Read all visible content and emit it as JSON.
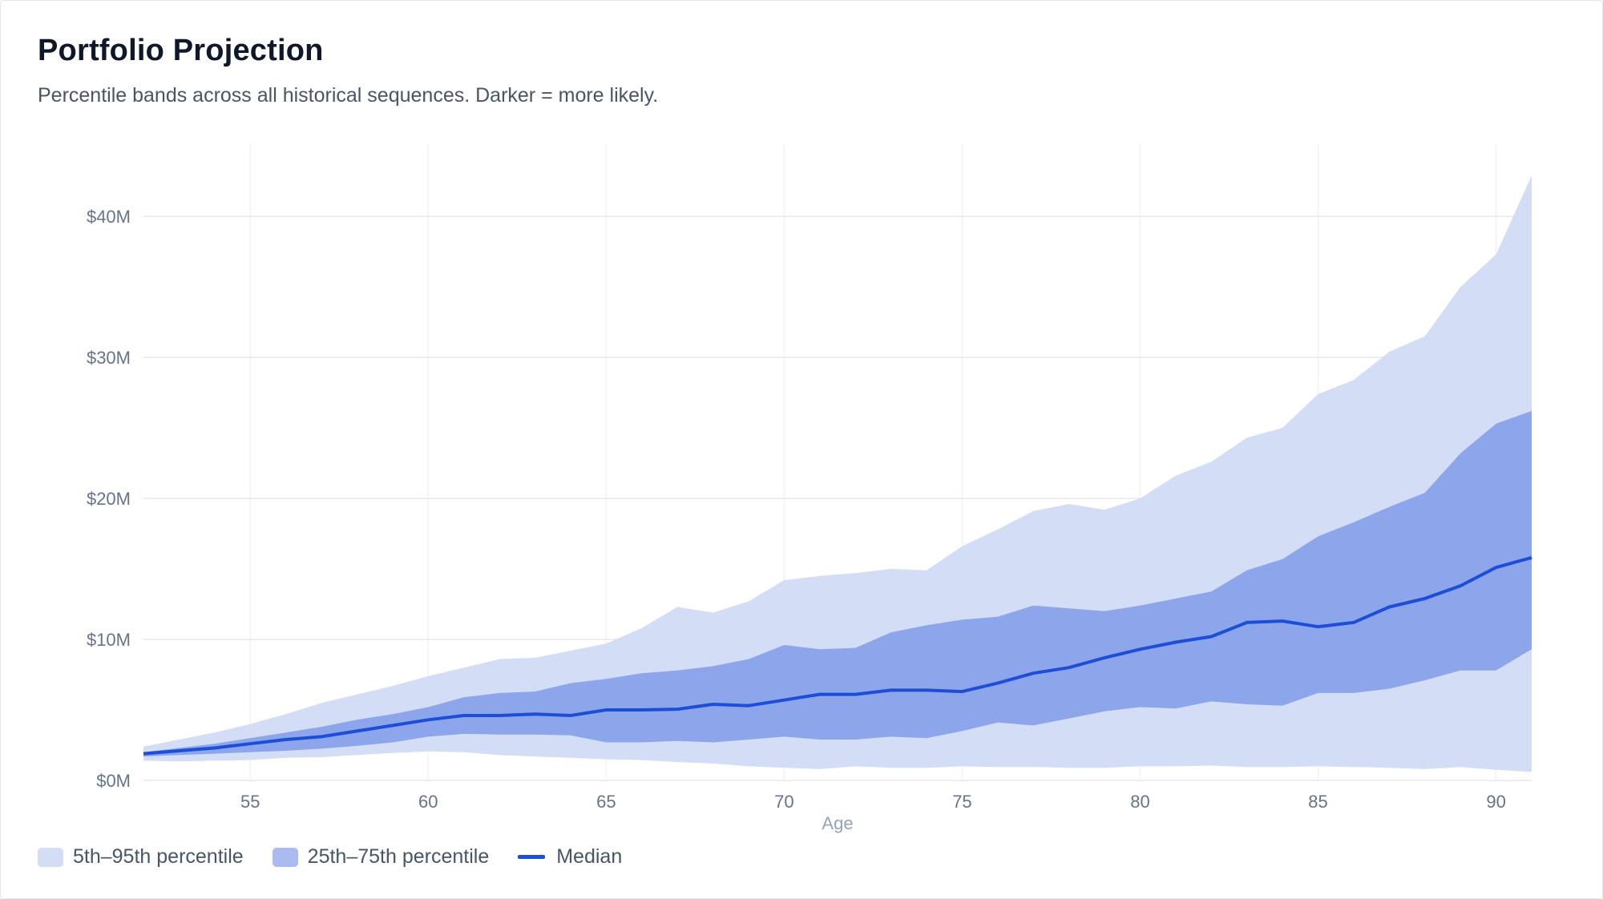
{
  "header": {
    "title": "Portfolio Projection",
    "subtitle": "Percentile bands across all historical sequences. Darker = more likely."
  },
  "legend": {
    "items": [
      {
        "label": "5th–95th percentile",
        "color": "#d3ddf6"
      },
      {
        "label": "25th–75th percentile",
        "color": "#a9bbf0"
      },
      {
        "label": "Median",
        "color": "#1d4ed8"
      }
    ]
  },
  "colors": {
    "band_outer": "#d3ddf6",
    "band_inner": "#8da5ea",
    "median": "#1d4ed8",
    "grid": "#e5e7eb",
    "tick_text": "#64748b"
  },
  "chart_data": {
    "type": "area",
    "xlabel": "Age",
    "ylabel": "",
    "xlim": [
      52,
      91
    ],
    "ylim": [
      0,
      45
    ],
    "x_ticks": [
      55,
      60,
      65,
      70,
      75,
      80,
      85,
      90
    ],
    "y_ticks": [
      0,
      10,
      20,
      30,
      40
    ],
    "y_tick_labels": [
      "$0M",
      "$10M",
      "$20M",
      "$30M",
      "$40M"
    ],
    "grid": true,
    "legend_position": "bottom-left",
    "x": [
      52,
      53,
      54,
      55,
      56,
      57,
      58,
      59,
      60,
      61,
      62,
      63,
      64,
      65,
      66,
      67,
      68,
      69,
      70,
      71,
      72,
      73,
      74,
      75,
      76,
      77,
      78,
      79,
      80,
      81,
      82,
      83,
      84,
      85,
      86,
      87,
      88,
      89,
      90,
      91
    ],
    "series": [
      {
        "name": "p5",
        "values": [
          1.4,
          1.35,
          1.4,
          1.45,
          1.6,
          1.65,
          1.8,
          1.95,
          2.05,
          2.0,
          1.8,
          1.7,
          1.6,
          1.5,
          1.45,
          1.3,
          1.2,
          1.0,
          0.9,
          0.8,
          1.0,
          0.9,
          0.9,
          1.0,
          0.95,
          0.95,
          0.9,
          0.9,
          1.0,
          1.0,
          1.05,
          0.95,
          0.95,
          1.0,
          0.95,
          0.9,
          0.8,
          0.95,
          0.75,
          0.6
        ]
      },
      {
        "name": "p25",
        "values": [
          1.7,
          1.8,
          1.9,
          2.0,
          2.1,
          2.25,
          2.45,
          2.7,
          3.1,
          3.3,
          3.25,
          3.25,
          3.2,
          2.7,
          2.7,
          2.8,
          2.7,
          2.9,
          3.1,
          2.9,
          2.9,
          3.1,
          3.0,
          3.5,
          4.1,
          3.9,
          4.4,
          4.9,
          5.2,
          5.1,
          5.6,
          5.4,
          5.3,
          6.2,
          6.2,
          6.5,
          7.1,
          7.8,
          7.8,
          9.3
        ]
      },
      {
        "name": "Median",
        "values": [
          1.9,
          2.1,
          2.3,
          2.6,
          2.9,
          3.1,
          3.5,
          3.9,
          4.3,
          4.6,
          4.6,
          4.7,
          4.6,
          5.0,
          5.0,
          5.05,
          5.4,
          5.3,
          5.7,
          6.1,
          6.1,
          6.4,
          6.4,
          6.3,
          6.9,
          7.6,
          8.0,
          8.7,
          9.3,
          9.8,
          10.2,
          11.2,
          11.3,
          10.9,
          11.2,
          12.3,
          12.9,
          13.8,
          15.1,
          15.8
        ]
      },
      {
        "name": "p75",
        "values": [
          2.0,
          2.3,
          2.6,
          3.0,
          3.4,
          3.8,
          4.3,
          4.7,
          5.2,
          5.9,
          6.2,
          6.3,
          6.9,
          7.2,
          7.6,
          7.8,
          8.1,
          8.6,
          9.6,
          9.3,
          9.4,
          10.5,
          11.0,
          11.4,
          11.6,
          12.4,
          12.2,
          12.0,
          12.4,
          12.9,
          13.4,
          14.9,
          15.7,
          17.3,
          18.3,
          19.4,
          20.4,
          23.2,
          25.3,
          26.2
        ]
      },
      {
        "name": "p95",
        "values": [
          2.4,
          2.9,
          3.4,
          4.0,
          4.7,
          5.5,
          6.1,
          6.7,
          7.4,
          8.0,
          8.6,
          8.7,
          9.2,
          9.7,
          10.8,
          12.3,
          11.9,
          12.7,
          14.2,
          14.5,
          14.7,
          15.0,
          14.9,
          16.6,
          17.8,
          19.1,
          19.6,
          19.2,
          20.0,
          21.6,
          22.6,
          24.3,
          25.0,
          27.4,
          28.4,
          30.4,
          31.5,
          35.0,
          37.3,
          42.9
        ]
      }
    ]
  }
}
